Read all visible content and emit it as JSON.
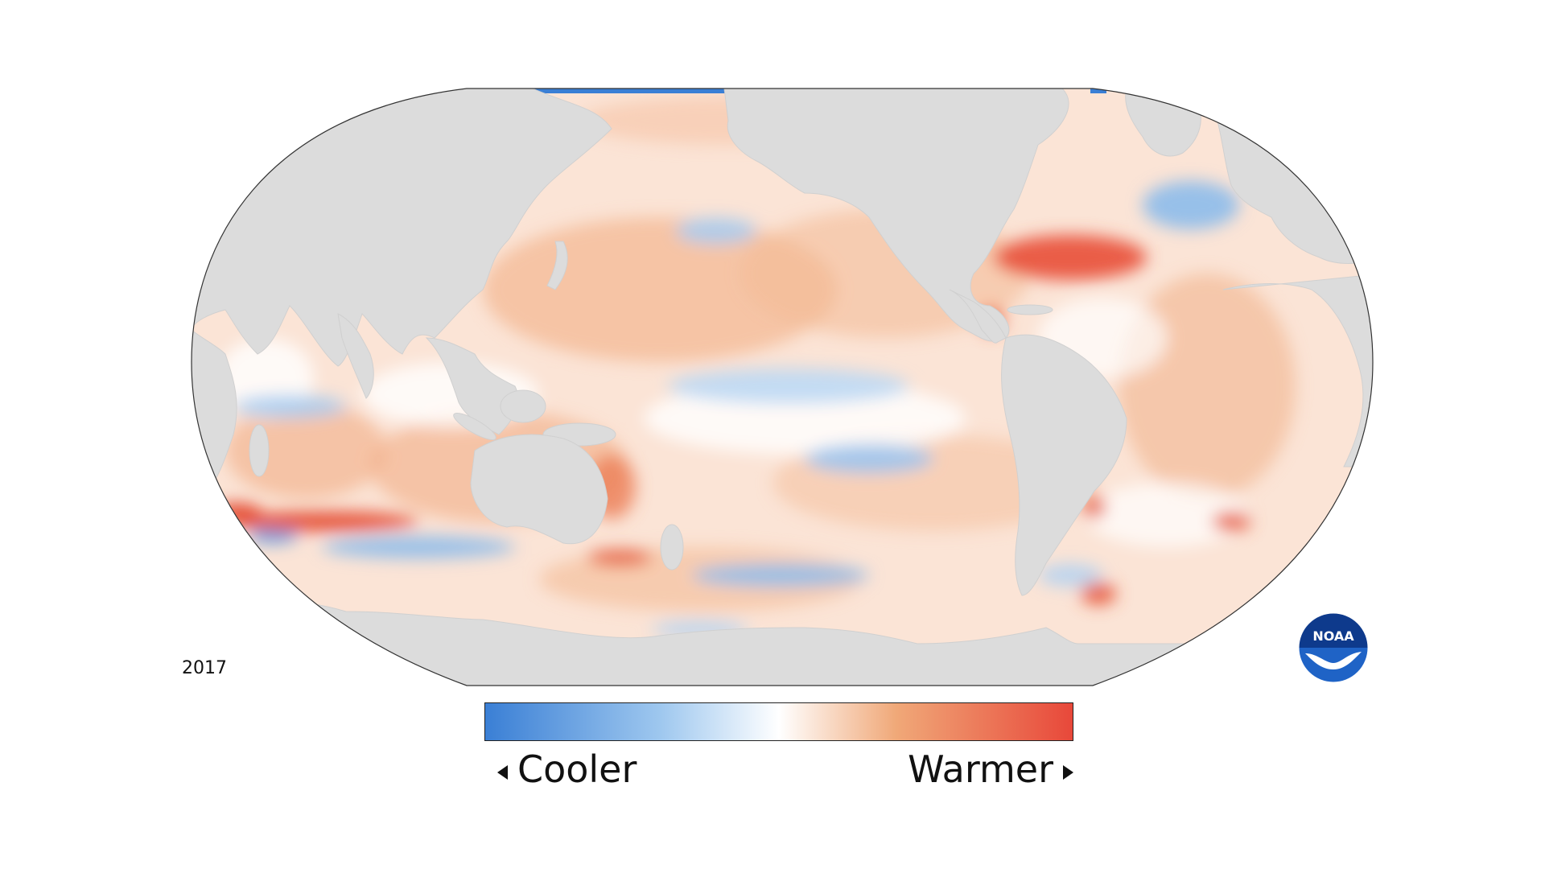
{
  "year": "2017",
  "legend": {
    "low_label": "Cooler",
    "high_label": "Warmer",
    "cool_color": "#3a7fd5",
    "neutral_color": "#ffffff",
    "warm_color": "#e8483a"
  },
  "map": {
    "projection": "robinson-pacific-centered",
    "land_color": "#dcdcdc",
    "ocean_default_color": "#fbe6da"
  },
  "logo": {
    "text": "NOAA"
  }
}
